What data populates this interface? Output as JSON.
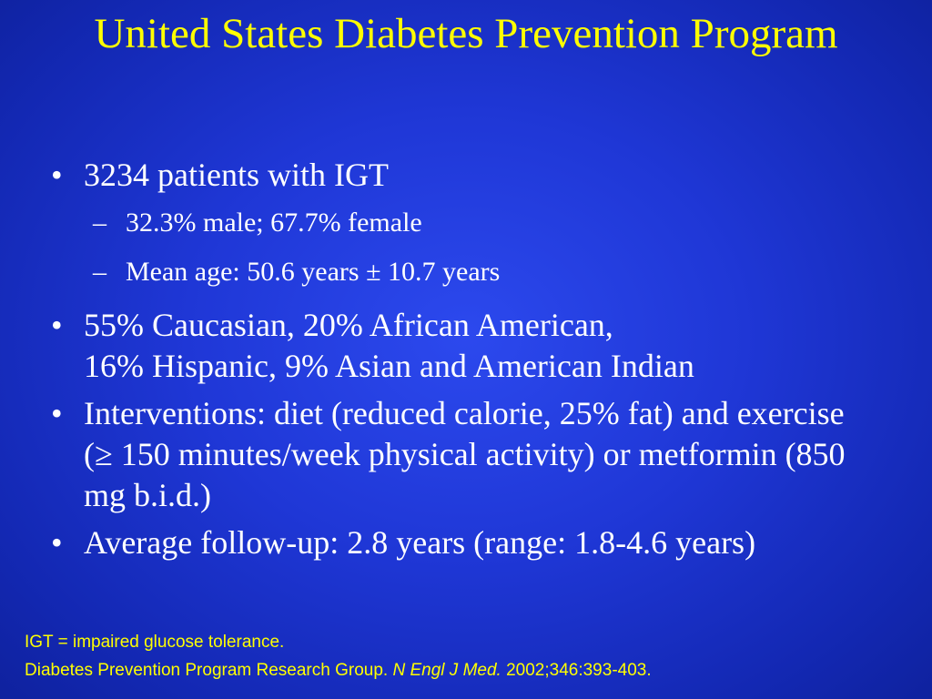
{
  "slide": {
    "title": "United States Diabetes Prevention Program",
    "bullets": [
      {
        "marker": "•",
        "text": "3234 patients with IGT",
        "subs": [
          {
            "marker": "–",
            "text": "32.3% male; 67.7% female"
          },
          {
            "marker": "–",
            "text": "Mean age: 50.6 years ± 10.7 years"
          }
        ]
      },
      {
        "marker": "•",
        "line1": "55% Caucasian, 20% African American,",
        "line2": "16% Hispanic, 9% Asian and American Indian"
      },
      {
        "marker": "•",
        "text": "Interventions: diet (reduced calorie, 25% fat) and exercise (≥ 150 minutes/week physical activity) or metformin (850 mg b.i.d.)"
      },
      {
        "marker": "•",
        "text": "Average follow-up: 2.8 years (range: 1.8-4.6 years)"
      }
    ],
    "footnote": {
      "line1": "IGT = impaired glucose tolerance.",
      "reference_authors": "Diabetes Prevention Program Research Group.",
      "reference_journal": "N Engl J Med.",
      "reference_citation": "2002;346:393-403."
    },
    "colors": {
      "title": "#ffff00",
      "body_text": "#ffffff",
      "footnote": "#ffff00",
      "background": "#1f37d6"
    }
  }
}
